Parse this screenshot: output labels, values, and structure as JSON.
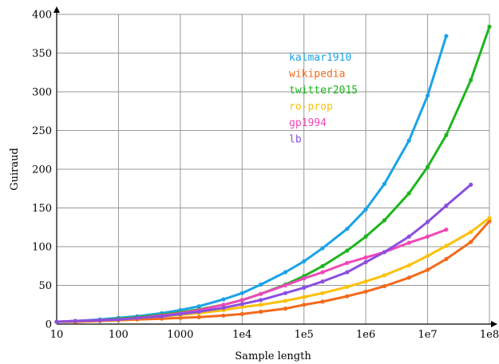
{
  "chart_data": {
    "type": "line",
    "xlabel": "Sample length",
    "ylabel": "Guiraud",
    "x_scale": "log",
    "xlim": [
      10,
      100000000
    ],
    "ylim": [
      0,
      400
    ],
    "grid": true,
    "legend_position": "top-center",
    "x_ticks": [
      {
        "value": 10,
        "label": "10"
      },
      {
        "value": 100,
        "label": "100"
      },
      {
        "value": 1000,
        "label": "1000"
      },
      {
        "value": 10000,
        "label": "1e4"
      },
      {
        "value": 100000,
        "label": "1e5"
      },
      {
        "value": 1000000,
        "label": "1e6"
      },
      {
        "value": 10000000,
        "label": "1e7"
      },
      {
        "value": 100000000,
        "label": "1e8"
      }
    ],
    "y_ticks": [
      {
        "value": 0,
        "label": "0"
      },
      {
        "value": 50,
        "label": "50"
      },
      {
        "value": 100,
        "label": "100"
      },
      {
        "value": 150,
        "label": "150"
      },
      {
        "value": 200,
        "label": "200"
      },
      {
        "value": 250,
        "label": "250"
      },
      {
        "value": 300,
        "label": "300"
      },
      {
        "value": 350,
        "label": "350"
      },
      {
        "value": 400,
        "label": "400"
      }
    ],
    "series": [
      {
        "name": "kalmar1910",
        "color": "#1aa3e8",
        "x": [
          10,
          20,
          50,
          100,
          200,
          500,
          1000,
          2000,
          5000,
          10000,
          20000,
          50000,
          100000,
          200000,
          500000,
          1000000,
          2000000,
          5000000,
          10000000,
          20000000
        ],
        "y": [
          3,
          4,
          6,
          8,
          10,
          14,
          18,
          23,
          32,
          40,
          51,
          67,
          81,
          98,
          123,
          148,
          181,
          237,
          295,
          372
        ]
      },
      {
        "name": "wikipedia",
        "color": "#f26a1b",
        "x": [
          10,
          20,
          50,
          100,
          200,
          500,
          1000,
          2000,
          5000,
          10000,
          20000,
          50000,
          100000,
          200000,
          500000,
          1000000,
          2000000,
          5000000,
          10000000,
          20000000,
          50000000,
          100000000
        ],
        "y": [
          3,
          3,
          4,
          5,
          6,
          7,
          8,
          9,
          11,
          13,
          16,
          20,
          25,
          29,
          36,
          42,
          49,
          60,
          70,
          84,
          106,
          133
        ]
      },
      {
        "name": "twitter2015",
        "color": "#1fb51f",
        "x": [
          10,
          20,
          50,
          100,
          200,
          500,
          1000,
          2000,
          5000,
          10000,
          20000,
          50000,
          100000,
          200000,
          500000,
          1000000,
          2000000,
          5000000,
          10000000,
          20000000,
          50000000,
          100000000
        ],
        "y": [
          3,
          4,
          5,
          7,
          9,
          12,
          15,
          19,
          25,
          31,
          39,
          51,
          62,
          75,
          95,
          113,
          134,
          169,
          203,
          244,
          315,
          384
        ]
      },
      {
        "name": "ro-prop",
        "color": "#fcc10a",
        "x": [
          10,
          20,
          50,
          100,
          200,
          500,
          1000,
          2000,
          5000,
          10000,
          20000,
          50000,
          100000,
          200000,
          500000,
          1000000,
          2000000,
          5000000,
          10000000,
          20000000,
          50000000,
          100000000
        ],
        "y": [
          3,
          4,
          5,
          6,
          8,
          10,
          12,
          14,
          18,
          22,
          25,
          30,
          35,
          40,
          48,
          55,
          63,
          76,
          88,
          101,
          119,
          137
        ]
      },
      {
        "name": "gp1994",
        "color": "#f048b8",
        "x": [
          10,
          20,
          50,
          100,
          200,
          500,
          1000,
          2000,
          5000,
          10000,
          20000,
          50000,
          100000,
          200000,
          500000,
          1000000,
          2000000,
          5000000,
          10000000,
          20000000
        ],
        "y": [
          3,
          4,
          5,
          6,
          8,
          11,
          14,
          18,
          25,
          31,
          39,
          50,
          59,
          67,
          79,
          86,
          93,
          105,
          113,
          122
        ]
      },
      {
        "name": "lb",
        "color": "#8b4fe0",
        "x": [
          10,
          20,
          50,
          100,
          200,
          500,
          1000,
          2000,
          5000,
          10000,
          20000,
          50000,
          100000,
          200000,
          500000,
          1000000,
          2000000,
          5000000,
          10000000,
          20000000,
          50000000
        ],
        "y": [
          3,
          4,
          5,
          6,
          8,
          10,
          13,
          16,
          21,
          26,
          31,
          40,
          47,
          55,
          67,
          80,
          93,
          113,
          132,
          153,
          180
        ]
      }
    ]
  }
}
